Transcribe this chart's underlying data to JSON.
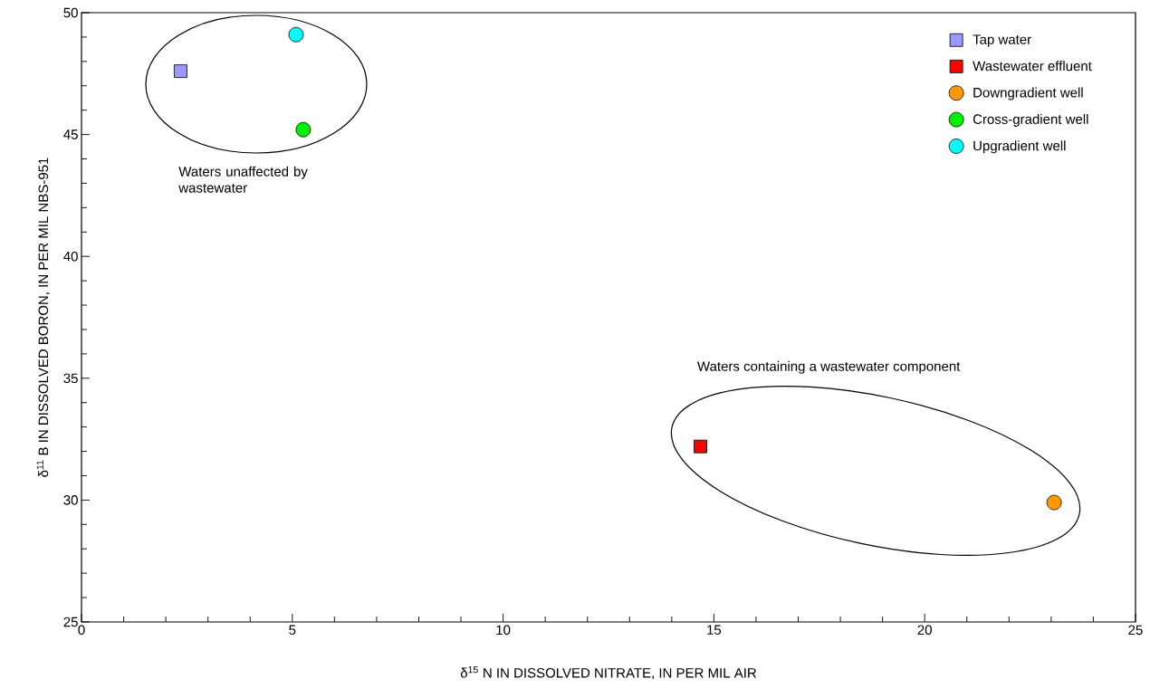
{
  "chart_data": {
    "type": "scatter",
    "xlabel": "δ$^{15}$ N IN DISSOLVED NITRATE, IN PER MIL AIR",
    "ylabel": "δ$^{11}$ B IN DISSOLVED BORON, IN PER MIL NBS-951",
    "xlim": [
      0,
      25
    ],
    "ylim": [
      25,
      50
    ],
    "xticks": [
      0,
      5,
      10,
      15,
      20,
      25
    ],
    "yticks": [
      25,
      30,
      35,
      40,
      45,
      50
    ],
    "grid": false,
    "legend": "top right",
    "annotations": [
      "Waters unaffected by wastewater",
      "Waters containing a wastewater component"
    ],
    "series": [
      {
        "name": "Tap water",
        "color": "#9999ff",
        "marker": "square",
        "x": [
          2.35
        ],
        "values": [
          47.6
        ]
      },
      {
        "name": "Wastewater effluent",
        "color": "#ff0000",
        "marker": "square",
        "x": [
          14.68
        ],
        "values": [
          32.2
        ]
      },
      {
        "name": "Downgradient well",
        "color": "#ff9900",
        "marker": "circle",
        "x": [
          23.07
        ],
        "values": [
          29.9
        ]
      },
      {
        "name": "Cross-gradient well",
        "color": "#00ee00",
        "marker": "circle",
        "x": [
          5.26
        ],
        "values": [
          45.2
        ]
      },
      {
        "name": "Upgradient  well",
        "color": "#00ffff",
        "marker": "circle",
        "x": [
          5.09
        ],
        "values": [
          49.1
        ]
      }
    ]
  }
}
